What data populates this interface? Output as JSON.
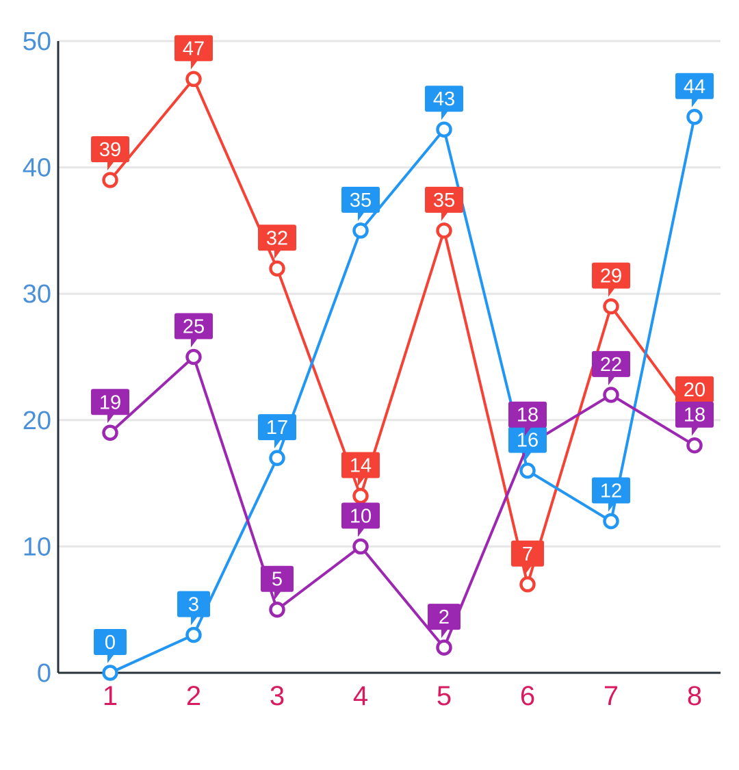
{
  "chart_data": {
    "type": "line",
    "x": [
      1,
      2,
      3,
      4,
      5,
      6,
      7,
      8
    ],
    "categories": [
      "1",
      "2",
      "3",
      "4",
      "5",
      "6",
      "7",
      "8"
    ],
    "ylim": [
      0,
      50
    ],
    "yticks": [
      0,
      10,
      20,
      30,
      40,
      50
    ],
    "ytick_labels": [
      "0",
      "10",
      "20",
      "30",
      "40",
      "50"
    ],
    "grid": true,
    "legend": "none",
    "colors": {
      "ytick": "#4a90d9",
      "xtick": "#d81b60",
      "grid": "#e6e6e6",
      "axis": "#263238"
    },
    "series": [
      {
        "color": "#f44336",
        "values": [
          39,
          47,
          32,
          14,
          35,
          7,
          29,
          20
        ]
      },
      {
        "color": "#2196f3",
        "values": [
          0,
          3,
          17,
          35,
          43,
          16,
          12,
          44
        ]
      },
      {
        "color": "#9c27b0",
        "values": [
          19,
          25,
          5,
          10,
          2,
          18,
          22,
          18
        ]
      }
    ]
  }
}
